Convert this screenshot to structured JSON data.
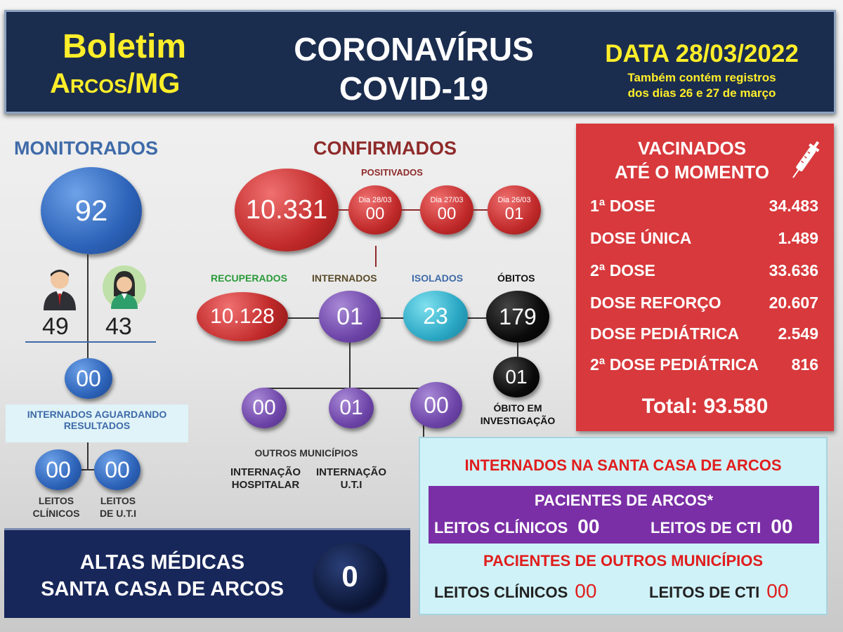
{
  "header": {
    "boletim": "Boletim",
    "cidade": "Arcos/MG",
    "titulo_linha1": "CORONAVÍRUS",
    "titulo_linha2": "COVID-19",
    "data": "DATA 28/03/2022",
    "nota_linha1": "Também contém registros",
    "nota_linha2": "dos dias 26 e 27 de março"
  },
  "monitorados": {
    "title": "MONITORADOS",
    "total": "92",
    "masculino": "49",
    "feminino": "43",
    "internados_aguardando": "00",
    "aguardando_label_1": "INTERNADOS AGUARDANDO",
    "aguardando_label_2": "RESULTADOS",
    "leitos_clinicos": "00",
    "leitos_uti": "00",
    "leitos_clinicos_label_1": "LEITOS",
    "leitos_clinicos_label_2": "CLÍNICOS",
    "leitos_uti_label_1": "LEITOS",
    "leitos_uti_label_2": "DE  U.T.I"
  },
  "confirmados": {
    "title": "CONFIRMADOS",
    "positivados_label": "POSITIVADOS",
    "total": "10.331",
    "dias": [
      {
        "label": "Dia 28/03",
        "value": "00"
      },
      {
        "label": "Dia 27/03",
        "value": "00"
      },
      {
        "label": "Dia 26/03",
        "value": "01"
      }
    ],
    "recuperados_label": "RECUPERADOS",
    "recuperados": "10.128",
    "internados_label": "INTERNADOS",
    "internados": "01",
    "isolados_label": "ISOLADOS",
    "isolados": "23",
    "obitos_label": "ÓBITOS",
    "obitos": "179",
    "obito_investigacao": "01",
    "obito_investigacao_label_1": "ÓBITO EM",
    "obito_investigacao_label_2": "INVESTIGAÇÃO",
    "sub_internados": [
      "00",
      "01",
      "00"
    ],
    "outros_municipios_label": "OUTROS MUNICÍPIOS",
    "internacao_hospitalar_label_1": "INTERNAÇÃO",
    "internacao_hospitalar_label_2": "HOSPITALAR",
    "internacao_uti_label_1": "INTERNAÇÃO",
    "internacao_uti_label_2": "U.T.I"
  },
  "vacinados": {
    "title_1": "VACINADOS",
    "title_2": "ATÉ O MOMENTO",
    "rows": [
      {
        "label": "1ª DOSE",
        "value": "34.483"
      },
      {
        "label": "DOSE ÚNICA",
        "value": "1.489"
      },
      {
        "label": "2ª DOSE",
        "value": "33.636"
      },
      {
        "label": "DOSE REFORÇO",
        "value": "20.607"
      },
      {
        "label": "DOSE PEDIÁTRICA",
        "value": "2.549"
      },
      {
        "label": "2ª DOSE PEDIÁTRICA",
        "value": "816"
      }
    ],
    "total": "Total: 93.580"
  },
  "santa_casa": {
    "title": "INTERNADOS NA SANTA CASA DE ARCOS",
    "arcos_label": "PACIENTES DE ARCOS*",
    "arcos_clinicos_label": "LEITOS CLÍNICOS",
    "arcos_clinicos": "00",
    "arcos_cti_label": "LEITOS DE CTI",
    "arcos_cti": "00",
    "outros_label": "PACIENTES DE OUTROS MUNICÍPIOS",
    "outros_clinicos_label": "LEITOS CLÍNICOS",
    "outros_clinicos": "00",
    "outros_cti_label": "LEITOS DE CTI",
    "outros_cti": "00"
  },
  "altas": {
    "label_1": "ALTAS MÉDICAS",
    "label_2": "SANTA CASA DE ARCOS",
    "value": "0"
  },
  "colors": {
    "header_bg": "#1b2d4e",
    "yellow": "#ffee2a",
    "confirmed_red": "#c12a2a",
    "recovered_green": "#2a9a3a",
    "internados_purple": "#6d44a8",
    "isolados_blue": "#2aa7c4",
    "vaccine_panel": "#d8393c"
  }
}
